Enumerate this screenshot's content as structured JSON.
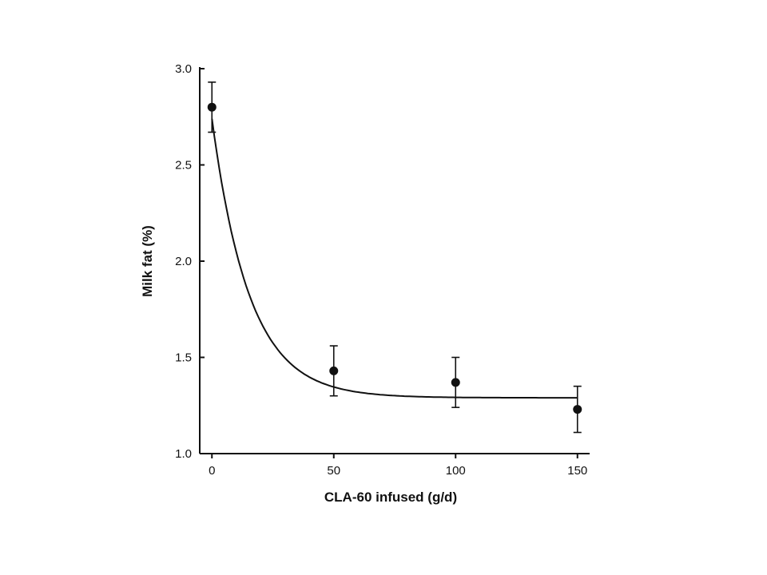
{
  "chart_data": {
    "type": "scatter",
    "title": "",
    "xlabel": "CLA-60 infused (g/d)",
    "ylabel": "Milk fat (%)",
    "xlim": [
      -5,
      155
    ],
    "ylim": [
      1.0,
      3.0
    ],
    "x_ticks": [
      0,
      50,
      100,
      150
    ],
    "y_ticks": [
      1.0,
      1.5,
      2.0,
      2.5,
      3.0
    ],
    "x_tick_labels": [
      "0",
      "50",
      "100",
      "150"
    ],
    "y_tick_labels": [
      "1.0",
      "1.5",
      "2.0",
      "2.5",
      "3.0"
    ],
    "grid": false,
    "legend": "none",
    "series": [
      {
        "points": [
          {
            "x": 0,
            "y": 2.8,
            "err": 0.13
          },
          {
            "x": 50,
            "y": 1.43,
            "err": 0.13
          },
          {
            "x": 100,
            "y": 1.37,
            "err": 0.13
          },
          {
            "x": 150,
            "y": 1.23,
            "err": 0.12
          }
        ]
      }
    ],
    "fit_curve": {
      "type": "exponential_decay",
      "asymptote": 1.29,
      "amplitude": 1.45,
      "rate": 0.065
    },
    "colors": {
      "ink": "#111111"
    }
  }
}
